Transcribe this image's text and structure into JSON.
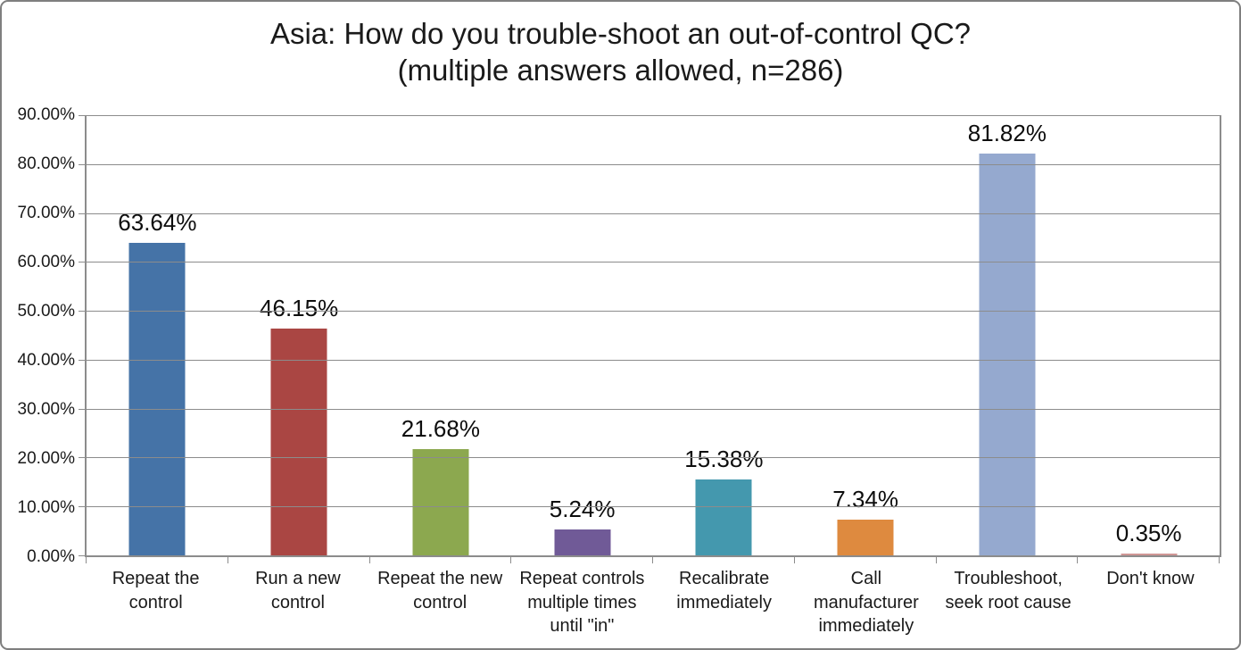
{
  "title": {
    "line1": "Asia: How do you trouble-shoot an out-of-control QC?",
    "line2": "(multiple answers allowed, n=286)"
  },
  "chart_data": {
    "type": "bar",
    "title": "Asia: How do you trouble-shoot an out-of-control QC? (multiple answers allowed, n=286)",
    "sample_size_note": "multiple answers allowed, n=286",
    "categories": [
      "Repeat the control",
      "Run a new control",
      "Repeat the new control",
      "Repeat controls multiple times until \"in\"",
      "Recalibrate immediately",
      "Call manufacturer immediately",
      "Troubleshoot, seek root cause",
      "Don't know"
    ],
    "category_lines": [
      [
        "Repeat the control"
      ],
      [
        "Run a new control"
      ],
      [
        "Repeat the new",
        "control"
      ],
      [
        "Repeat controls",
        "multiple times",
        "until \"in\""
      ],
      [
        "Recalibrate",
        "immediately"
      ],
      [
        "Call manufacturer",
        "immediately"
      ],
      [
        "Troubleshoot,",
        "seek root cause"
      ],
      [
        "Don't know"
      ]
    ],
    "values": [
      63.64,
      46.15,
      21.68,
      5.24,
      15.38,
      7.34,
      81.82,
      0.35
    ],
    "data_labels": [
      "63.64%",
      "46.15%",
      "21.68%",
      "5.24%",
      "15.38%",
      "7.34%",
      "81.82%",
      "0.35%"
    ],
    "bar_colors": [
      "#4573A7",
      "#AA4643",
      "#8CA84F",
      "#705A97",
      "#4498AE",
      "#DE8A3F",
      "#95A9CF",
      "#D09694"
    ],
    "xlabel": "",
    "ylabel": "",
    "ylim": [
      0,
      90
    ],
    "y_tick_step": 10,
    "y_ticks": [
      {
        "value": 0,
        "label": "0.00%"
      },
      {
        "value": 10,
        "label": "10.00%"
      },
      {
        "value": 20,
        "label": "20.00%"
      },
      {
        "value": 30,
        "label": "30.00%"
      },
      {
        "value": 40,
        "label": "40.00%"
      },
      {
        "value": 50,
        "label": "50.00%"
      },
      {
        "value": 60,
        "label": "60.00%"
      },
      {
        "value": 70,
        "label": "70.00%"
      },
      {
        "value": 80,
        "label": "80.00%"
      },
      {
        "value": 90,
        "label": "90.00%"
      }
    ],
    "grid": true,
    "legend": "none",
    "colors": {
      "grid": "#8C8C8C",
      "axis": "#8C8C8C",
      "text": "#1A1A1A",
      "background": "#FFFFFF",
      "frame_border": "#7F7F7F"
    }
  }
}
